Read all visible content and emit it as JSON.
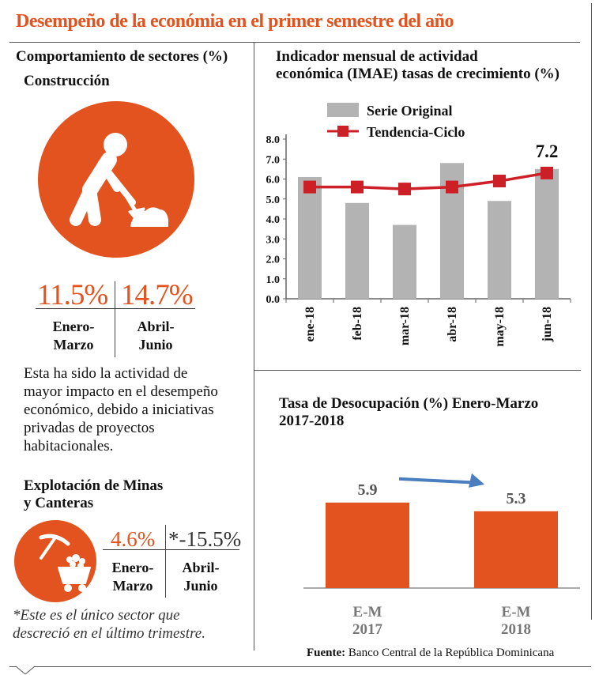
{
  "header": {
    "title": "Desempeño de la económia en el primer semestre del año"
  },
  "left": {
    "section_title": "Comportamiento de sectores (%)",
    "construction": {
      "title": "Construcción",
      "icon": "construction-worker-icon",
      "q1_value": "11.5%",
      "q2_value": "14.7%",
      "q1_label_1": "Enero-",
      "q1_label_2": "Marzo",
      "q2_label_1": "Abril-",
      "q2_label_2": "Junio",
      "description": [
        "Esta ha sido la actividad de",
        "mayor impacto en el desempeño",
        "económico, debido a iniciativas",
        "privadas de proyectos",
        "habitacionales."
      ]
    },
    "mining": {
      "title_1": "Explotación de Minas",
      "title_2": "y Canteras",
      "icon": "mining-cart-icon",
      "q1_value": "4.6%",
      "q2_value": "*-15.5%",
      "q1_label_1": "Enero-",
      "q1_label_2": "Marzo",
      "q2_label_1": "Abril-",
      "q2_label_2": "Junio",
      "note_1": "*Este es el único sector que",
      "note_2": "descreció en el último trimestre."
    }
  },
  "colors": {
    "accent": "#e2531f",
    "bar_gray": "#b3b3b3",
    "trend_red": "#cc1f26",
    "arrow_blue": "#4a7ebf"
  },
  "chart_data": [
    {
      "type": "bar",
      "title": "Indicador mensual de actividad económica (IMAE) tasas de crecimiento (%)",
      "title_lines": [
        "Indicador mensual de actividad",
        "económica (IMAE) tasas de crecimiento (%)"
      ],
      "categories": [
        "ene-18",
        "feb-18",
        "mar-18",
        "abr-18",
        "may-18",
        "jun-18"
      ],
      "series": [
        {
          "name": "Serie Original",
          "type": "bar",
          "values": [
            6.1,
            4.8,
            3.7,
            6.8,
            4.9,
            6.5
          ]
        },
        {
          "name": "Tendencia-Ciclo",
          "type": "line",
          "values": [
            5.6,
            5.6,
            5.5,
            5.6,
            5.9,
            6.3
          ]
        }
      ],
      "ylim": [
        0,
        8
      ],
      "yticks": [
        "0.0",
        "1.0",
        "2.0",
        "3.0",
        "4.0",
        "5.0",
        "6.0",
        "7.0",
        "8.0"
      ],
      "annotation": "7.2",
      "legend": "top-left"
    },
    {
      "type": "bar",
      "title": "Tasa de Desocupación (%) Enero-Marzo 2017-2018",
      "title_lines": [
        "Tasa de Desocupación (%) Enero-Marzo",
        "2017-2018"
      ],
      "categories": [
        [
          "E-M",
          "2017"
        ],
        [
          "E-M",
          "2018"
        ]
      ],
      "values": [
        5.9,
        5.3
      ],
      "value_labels": [
        "5.9",
        "5.3"
      ]
    }
  ],
  "footer": {
    "source_label": "Fuente:",
    "source_text": "Banco Central de la República Dominicana"
  }
}
